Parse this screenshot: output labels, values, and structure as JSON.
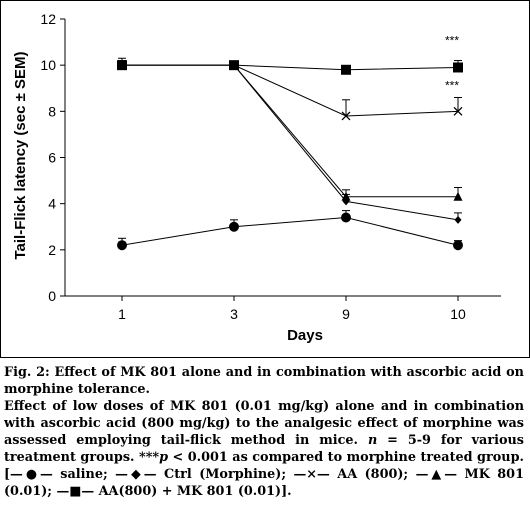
{
  "chart_data": {
    "type": "line",
    "categories": [
      "1",
      "3",
      "9",
      "10"
    ],
    "ylabel": "Tail-Flick latency (sec ± SEM)",
    "xlabel": "Days",
    "ylim": [
      0,
      12
    ],
    "yticks": [
      "0",
      "2",
      "4",
      "6",
      "8",
      "10",
      "12"
    ],
    "grid": false,
    "annotations": [
      "***",
      "***"
    ],
    "series": [
      {
        "marker": "circle",
        "values": [
          2.2,
          3.0,
          3.4,
          2.2
        ],
        "errors": [
          0.3,
          0.3,
          0.3,
          0.2
        ]
      },
      {
        "marker": "diamond",
        "values": [
          10.0,
          10.0,
          4.1,
          3.3
        ],
        "errors": [
          0.2,
          0.0,
          0.3,
          0.3
        ]
      },
      {
        "marker": "cross",
        "values": [
          10.0,
          10.0,
          7.8,
          8.0
        ],
        "errors": [
          0.2,
          0.0,
          0.7,
          0.6
        ]
      },
      {
        "marker": "triangle",
        "values": [
          10.0,
          10.0,
          4.3,
          4.3
        ],
        "errors": [
          0.2,
          0.0,
          0.3,
          0.4
        ]
      },
      {
        "marker": "square",
        "values": [
          10.0,
          10.0,
          9.8,
          9.9
        ],
        "errors": [
          0.3,
          0.0,
          0.0,
          0.3
        ]
      }
    ],
    "colors": {
      "line": "#000000",
      "marker": "#000000"
    }
  },
  "caption": {
    "title": "Fig. 2: Effect of MK 801 alone and in combination with ascorbic acid on morphine tolerance.",
    "body_1": "Effect of low doses of MK 801 (0.01 mg/kg) alone and in combination with ascorbic acid (800 mg/kg) to the analgesic effect of morphine was assessed employing tail-flick method in mice. ",
    "n_text": "n",
    "body_2": " = 5-9 for various treatment groups. ***",
    "p_text": "p",
    "body_3": " < 0.001 as compared to morphine treated group. [—●— saline; —◆— Ctrl (Morphine); —×— AA (800); —▲— MK 801 (0.01); —■— AA(800) + MK 801 (0.01)]."
  }
}
